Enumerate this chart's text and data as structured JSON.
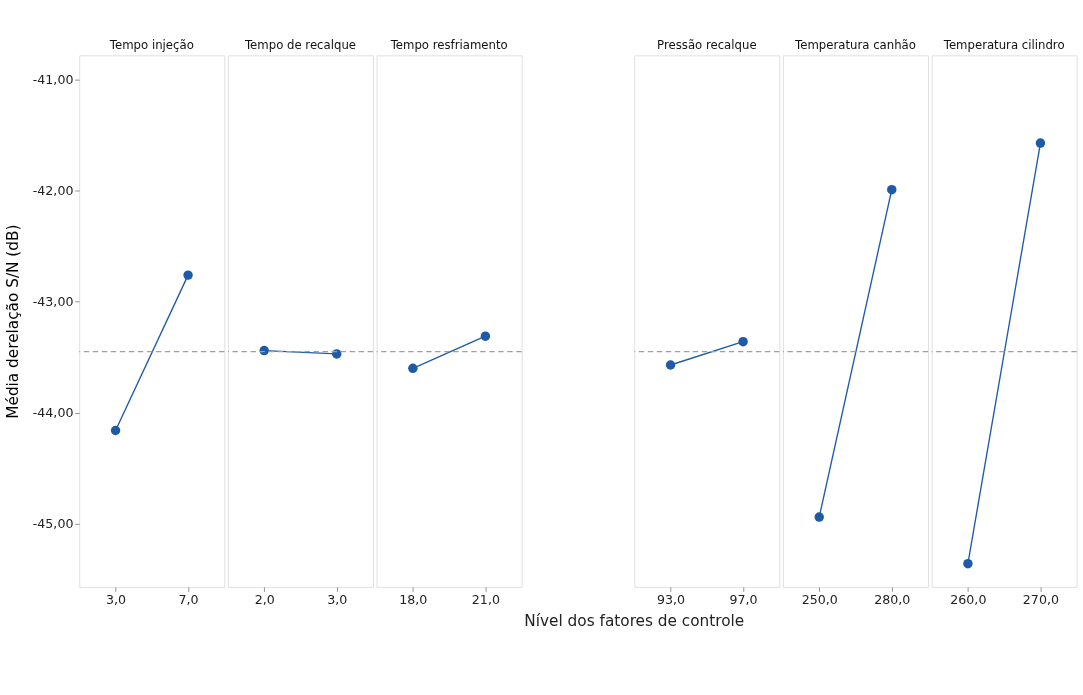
{
  "chart_data": [
    {
      "type": "line",
      "title": "Tempo injeção",
      "categories": [
        "3,0",
        "7,0"
      ],
      "series": [
        {
          "color": "#1f5aa6",
          "values": [
            -44.16,
            -42.76
          ]
        }
      ],
      "marker": "circle",
      "ylim": [
        -45.57,
        -40.78
      ],
      "yticks": [
        {
          "value": -41,
          "label": "-41,00"
        },
        {
          "value": -42,
          "label": "-42,00"
        },
        {
          "value": -43,
          "label": "-43,00"
        },
        {
          "value": -44,
          "label": "-44,00"
        },
        {
          "value": -45,
          "label": "-45,00"
        }
      ],
      "ylabel": "Média derelação S/N (dB)",
      "ref_lines": [
        {
          "axis": "y",
          "value": -43.45,
          "color": "#a0a0a0",
          "line_style": "dashed"
        }
      ],
      "grid": false
    },
    {
      "type": "line",
      "title": "Tempo de recalque",
      "categories": [
        "2,0",
        "3,0"
      ],
      "series": [
        {
          "color": "#1f5aa6",
          "values": [
            -43.44,
            -43.47
          ]
        }
      ],
      "marker": "circle",
      "ylim": [
        -45.57,
        -40.78
      ],
      "tick_labels": "x",
      "ref_lines": [
        {
          "axis": "y",
          "value": -43.45,
          "color": "#a0a0a0",
          "line_style": "dashed"
        }
      ],
      "grid": false
    },
    {
      "type": "line",
      "title": "Tempo resfriamento",
      "categories": [
        "18,0",
        "21,0"
      ],
      "series": [
        {
          "color": "#1f5aa6",
          "values": [
            -43.6,
            -43.31
          ]
        }
      ],
      "marker": "circle",
      "ylim": [
        -45.57,
        -40.78
      ],
      "tick_labels": "x",
      "ref_lines": [
        {
          "axis": "y",
          "value": -43.45,
          "color": "#a0a0a0",
          "line_style": "dashed"
        }
      ],
      "grid": false
    },
    {
      "type": "line",
      "title": "Pressão recalque",
      "categories": [
        "93,0",
        "97,0"
      ],
      "series": [
        {
          "color": "#1f5aa6",
          "values": [
            -43.57,
            -43.36
          ]
        }
      ],
      "marker": "circle",
      "ylim": [
        -45.57,
        -40.78
      ],
      "tick_labels": "x",
      "xlabel": "Nível dos fatores de controle",
      "ref_lines": [
        {
          "axis": "y",
          "value": -43.45,
          "color": "#a0a0a0",
          "line_style": "dashed"
        }
      ],
      "grid": false
    },
    {
      "type": "line",
      "title": "Temperatura canhão",
      "categories": [
        "250,0",
        "280,0"
      ],
      "series": [
        {
          "color": "#1f5aa6",
          "values": [
            -44.94,
            -41.99
          ]
        }
      ],
      "marker": "circle",
      "ylim": [
        -45.57,
        -40.78
      ],
      "tick_labels": "x",
      "ref_lines": [
        {
          "axis": "y",
          "value": -43.45,
          "color": "#a0a0a0",
          "line_style": "dashed"
        }
      ],
      "grid": false
    },
    {
      "type": "line",
      "title": "Temperatura cilindro",
      "categories": [
        "260,0",
        "270,0"
      ],
      "series": [
        {
          "color": "#1f5aa6",
          "values": [
            -45.36,
            -41.57
          ]
        }
      ],
      "marker": "circle",
      "ylim": [
        -45.57,
        -40.78
      ],
      "tick_labels": "x",
      "ref_lines": [
        {
          "axis": "y",
          "value": -43.45,
          "color": "#a0a0a0",
          "line_style": "dashed"
        }
      ],
      "grid": false
    }
  ]
}
